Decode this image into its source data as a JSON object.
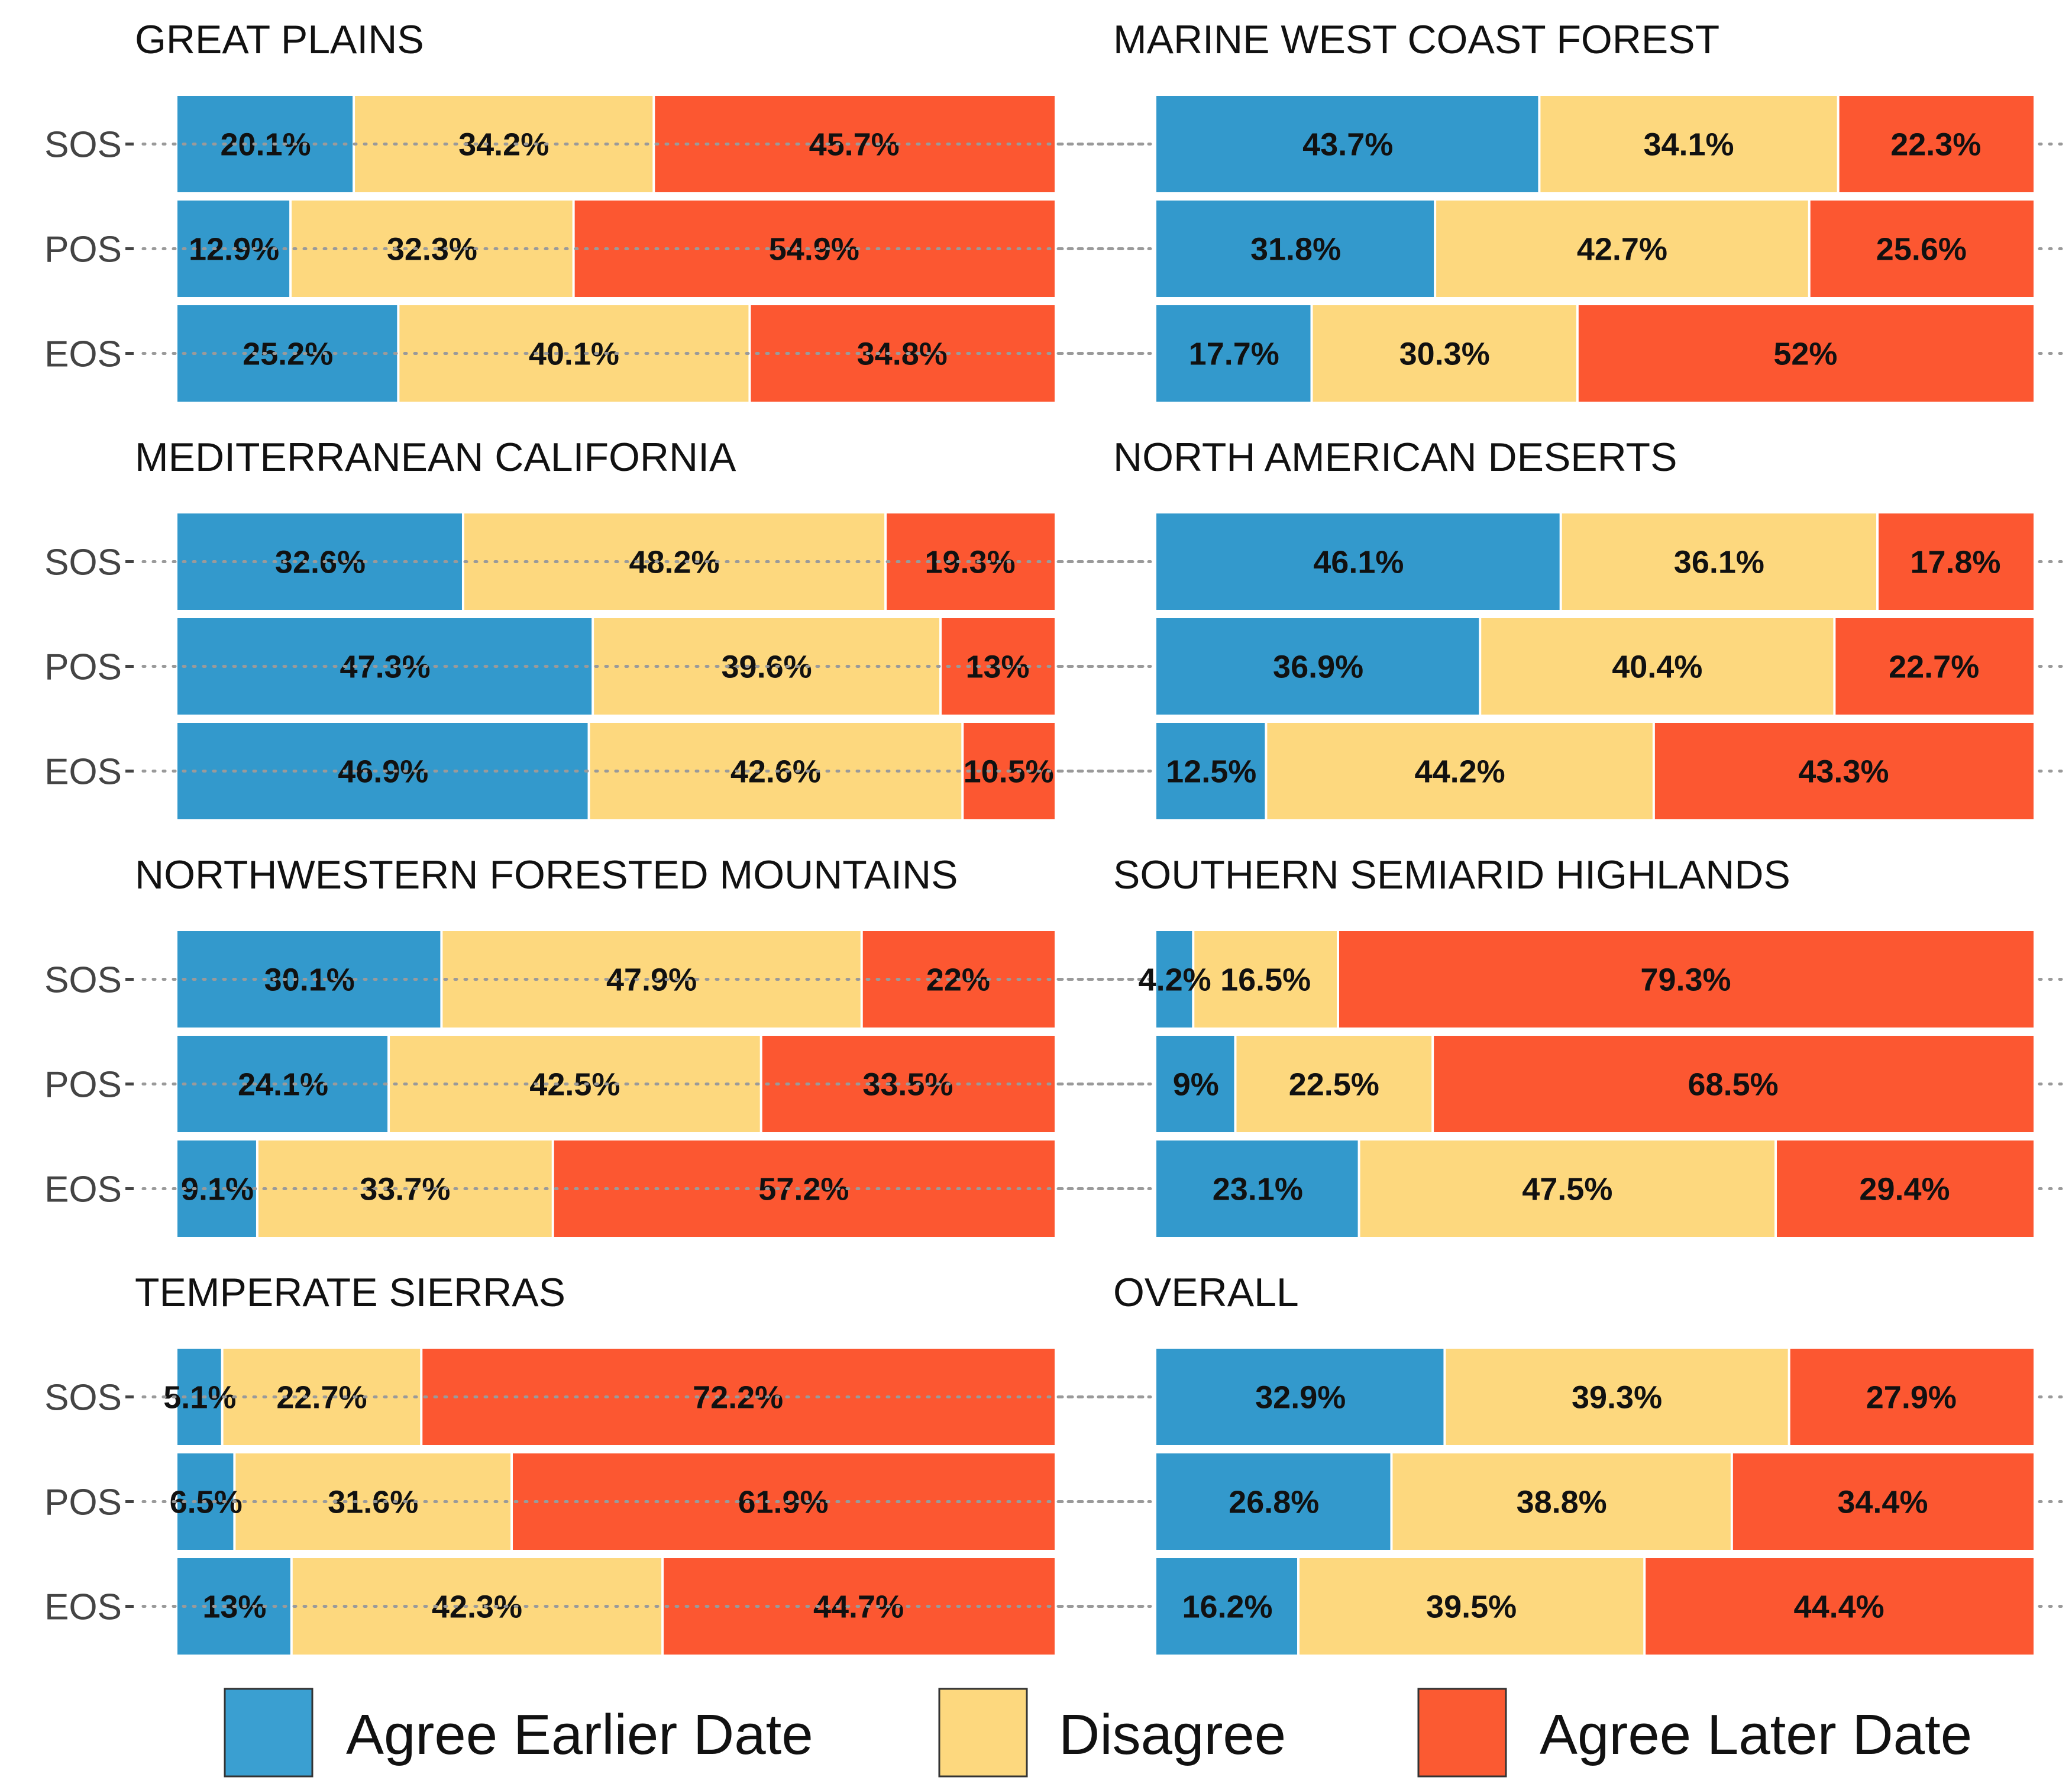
{
  "chart_data": {
    "type": "bar",
    "orientation": "horizontal",
    "stacked": true,
    "stacked_to_percent": true,
    "xlim": [
      0,
      100
    ],
    "categories": [
      "SOS",
      "POS",
      "EOS"
    ],
    "legend": {
      "placement": "bottom",
      "entries": [
        {
          "name": "Agree Earlier Date",
          "color": "#3a9fd1"
        },
        {
          "name": "Disagree",
          "color": "#fdd87e"
        },
        {
          "name": "Agree Later Date",
          "color": "#fb5a32"
        }
      ]
    },
    "colors": [
      "#3399cc",
      "#fdd87e",
      "#fc5731"
    ],
    "panels": [
      {
        "title": "GREAT PLAINS",
        "rows": [
          {
            "category": "SOS",
            "values": [
              20.1,
              34.2,
              45.7
            ],
            "labels": [
              "20.1%",
              "34.2%",
              "45.7%"
            ]
          },
          {
            "category": "POS",
            "values": [
              12.9,
              32.3,
              54.9
            ],
            "labels": [
              "12.9%",
              "32.3%",
              "54.9%"
            ]
          },
          {
            "category": "EOS",
            "values": [
              25.2,
              40.1,
              34.8
            ],
            "labels": [
              "25.2%",
              "40.1%",
              "34.8%"
            ]
          }
        ]
      },
      {
        "title": "MARINE WEST COAST FOREST",
        "rows": [
          {
            "category": "SOS",
            "values": [
              43.7,
              34.1,
              22.3
            ],
            "labels": [
              "43.7%",
              "34.1%",
              "22.3%"
            ]
          },
          {
            "category": "POS",
            "values": [
              31.8,
              42.7,
              25.6
            ],
            "labels": [
              "31.8%",
              "42.7%",
              "25.6%"
            ]
          },
          {
            "category": "EOS",
            "values": [
              17.7,
              30.3,
              52
            ],
            "labels": [
              "17.7%",
              "30.3%",
              "52%"
            ]
          }
        ]
      },
      {
        "title": "MEDITERRANEAN CALIFORNIA",
        "rows": [
          {
            "category": "SOS",
            "values": [
              32.6,
              48.2,
              19.3
            ],
            "labels": [
              "32.6%",
              "48.2%",
              "19.3%"
            ]
          },
          {
            "category": "POS",
            "values": [
              47.3,
              39.6,
              13
            ],
            "labels": [
              "47.3%",
              "39.6%",
              "13%"
            ]
          },
          {
            "category": "EOS",
            "values": [
              46.9,
              42.6,
              10.5
            ],
            "labels": [
              "46.9%",
              "42.6%",
              "10.5%"
            ]
          }
        ]
      },
      {
        "title": "NORTH AMERICAN DESERTS",
        "rows": [
          {
            "category": "SOS",
            "values": [
              46.1,
              36.1,
              17.8
            ],
            "labels": [
              "46.1%",
              "36.1%",
              "17.8%"
            ]
          },
          {
            "category": "POS",
            "values": [
              36.9,
              40.4,
              22.7
            ],
            "labels": [
              "36.9%",
              "40.4%",
              "22.7%"
            ]
          },
          {
            "category": "EOS",
            "values": [
              12.5,
              44.2,
              43.3
            ],
            "labels": [
              "12.5%",
              "44.2%",
              "43.3%"
            ]
          }
        ]
      },
      {
        "title": "NORTHWESTERN FORESTED MOUNTAINS",
        "rows": [
          {
            "category": "SOS",
            "values": [
              30.1,
              47.9,
              22
            ],
            "labels": [
              "30.1%",
              "47.9%",
              "22%"
            ]
          },
          {
            "category": "POS",
            "values": [
              24.1,
              42.5,
              33.5
            ],
            "labels": [
              "24.1%",
              "42.5%",
              "33.5%"
            ]
          },
          {
            "category": "EOS",
            "values": [
              9.1,
              33.7,
              57.2
            ],
            "labels": [
              "9.1%",
              "33.7%",
              "57.2%"
            ]
          }
        ]
      },
      {
        "title": "SOUTHERN SEMIARID HIGHLANDS",
        "rows": [
          {
            "category": "SOS",
            "values": [
              4.2,
              16.5,
              79.3
            ],
            "labels": [
              "4.2%",
              "16.5%",
              "79.3%"
            ]
          },
          {
            "category": "POS",
            "values": [
              9,
              22.5,
              68.5
            ],
            "labels": [
              "9%",
              "22.5%",
              "68.5%"
            ]
          },
          {
            "category": "EOS",
            "values": [
              23.1,
              47.5,
              29.4
            ],
            "labels": [
              "23.1%",
              "47.5%",
              "29.4%"
            ]
          }
        ]
      },
      {
        "title": "TEMPERATE SIERRAS",
        "rows": [
          {
            "category": "SOS",
            "values": [
              5.1,
              22.7,
              72.2
            ],
            "labels": [
              "5.1%",
              "22.7%",
              "72.2%"
            ]
          },
          {
            "category": "POS",
            "values": [
              6.5,
              31.6,
              61.9
            ],
            "labels": [
              "6.5%",
              "31.6%",
              "61.9%"
            ]
          },
          {
            "category": "EOS",
            "values": [
              13,
              42.3,
              44.7
            ],
            "labels": [
              "13%",
              "42.3%",
              "44.7%"
            ]
          }
        ]
      },
      {
        "title": "OVERALL",
        "rows": [
          {
            "category": "SOS",
            "values": [
              32.9,
              39.3,
              27.9
            ],
            "labels": [
              "32.9%",
              "39.3%",
              "27.9%"
            ]
          },
          {
            "category": "POS",
            "values": [
              26.8,
              38.8,
              34.4
            ],
            "labels": [
              "26.8%",
              "38.8%",
              "34.4%"
            ]
          },
          {
            "category": "EOS",
            "values": [
              16.2,
              39.5,
              44.4
            ],
            "labels": [
              "16.2%",
              "39.5%",
              "44.4%"
            ]
          }
        ]
      }
    ]
  }
}
